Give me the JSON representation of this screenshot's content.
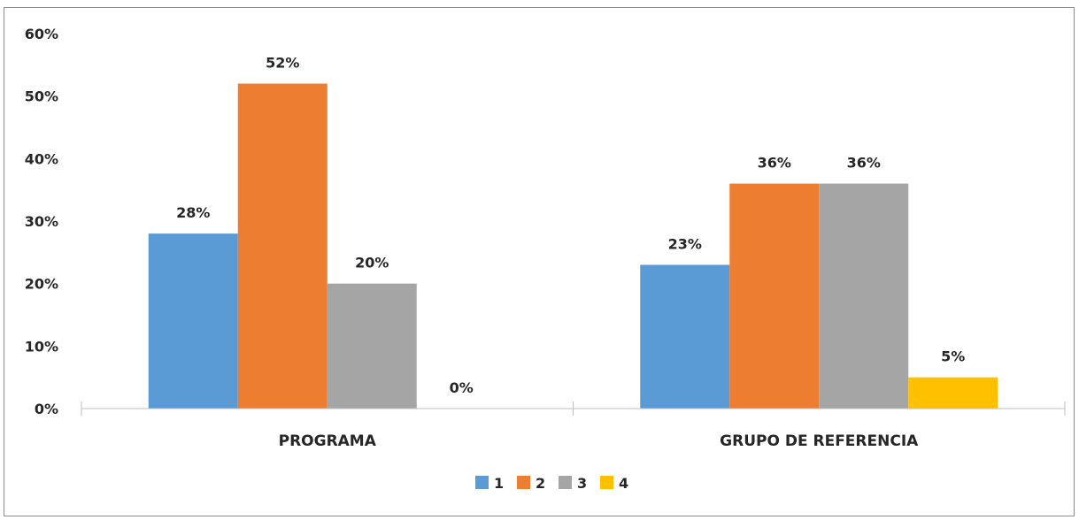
{
  "chart_data": {
    "type": "bar",
    "title": "",
    "xlabel": "",
    "ylabel": "",
    "categories": [
      "PROGRAMA",
      "GRUPO DE REFERENCIA"
    ],
    "series": [
      {
        "name": "1",
        "values": [
          28,
          23
        ],
        "labels": [
          "28%",
          "23%"
        ],
        "color": "#5b9bd5"
      },
      {
        "name": "2",
        "values": [
          52,
          36
        ],
        "labels": [
          "52%",
          "36%"
        ],
        "color": "#ed7d31"
      },
      {
        "name": "3",
        "values": [
          20,
          36
        ],
        "labels": [
          "20%",
          "36%"
        ],
        "color": "#a5a5a5"
      },
      {
        "name": "4",
        "values": [
          0,
          5
        ],
        "labels": [
          "0%",
          "5%"
        ],
        "color": "#ffc000"
      }
    ],
    "ylim": [
      0,
      60
    ],
    "yticks": [
      0,
      10,
      20,
      30,
      40,
      50,
      60
    ],
    "ytick_labels": [
      "0%",
      "10%",
      "20%",
      "30%",
      "40%",
      "50%",
      "60%"
    ],
    "grid": false,
    "legend_position": "bottom",
    "axis_color": "#bfbfbf"
  }
}
